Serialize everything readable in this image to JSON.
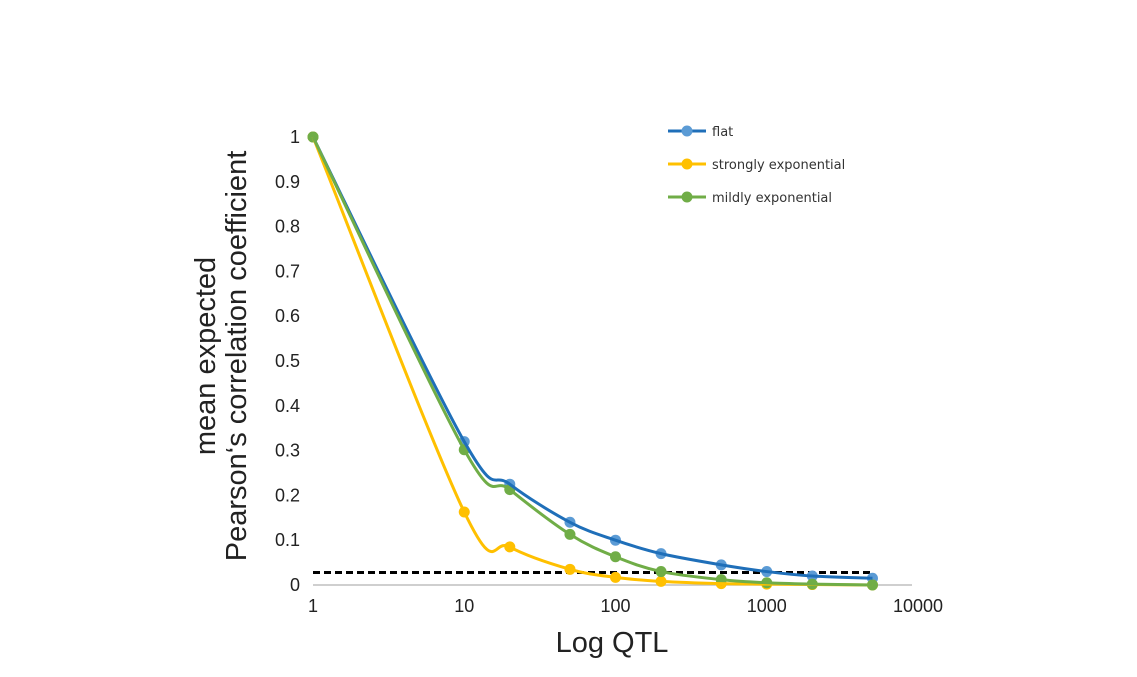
{
  "chart_data": {
    "type": "line",
    "title": "",
    "xlabel": "Log QTL",
    "ylabel": [
      "mean expected",
      "Pearson‘s correlation coefficient"
    ],
    "xscale": "log",
    "xlim": [
      1,
      10000
    ],
    "ylim": [
      0,
      1
    ],
    "x_ticks": [
      "1",
      "10",
      "100",
      "1000",
      "10000"
    ],
    "y_ticks": [
      "0",
      "0.1",
      "0.2",
      "0.3",
      "0.4",
      "0.5",
      "0.6",
      "0.7",
      "0.8",
      "0.9",
      "1"
    ],
    "grid": false,
    "legend_position": "top-right",
    "x": [
      1,
      10,
      20,
      50,
      100,
      200,
      500,
      1000,
      2000,
      5000
    ],
    "series": [
      {
        "name": "flat",
        "marker_color": "#5B9BD5",
        "line_color": "#1F6FB9",
        "values": [
          1.0,
          0.32,
          0.225,
          0.14,
          0.1,
          0.07,
          0.045,
          0.03,
          0.02,
          0.015
        ]
      },
      {
        "name": "strongly exponential",
        "marker_color": "#FFC000",
        "line_color": "#FFC000",
        "values": [
          1.0,
          0.163,
          0.085,
          0.035,
          0.017,
          0.008,
          0.003,
          0.002,
          0.001,
          0.0
        ]
      },
      {
        "name": "mildly exponential",
        "marker_color": "#70AD47",
        "line_color": "#70AD47",
        "values": [
          1.0,
          0.302,
          0.213,
          0.113,
          0.063,
          0.03,
          0.012,
          0.005,
          0.002,
          0.0
        ]
      }
    ],
    "reference_line": {
      "y": 0.028,
      "x_range": [
        1,
        5000
      ],
      "style": "dashed",
      "color": "#000000"
    }
  }
}
